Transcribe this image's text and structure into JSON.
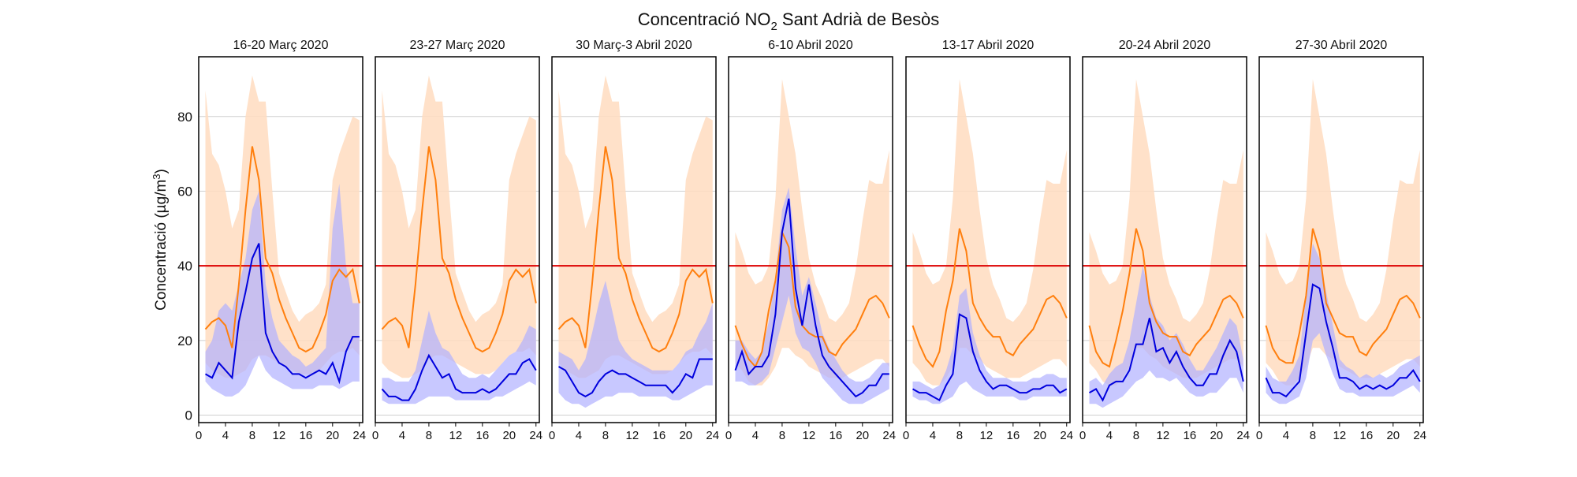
{
  "chart_data": {
    "type": "line",
    "title": "Concentració NO",
    "title_sub": "2",
    "title_rest": " Sant Adrià de Besòs",
    "ylabel_main": "Concentració (µg/m",
    "ylabel_sup": "3",
    "ylabel_end": ")",
    "ylim": [
      -2,
      96
    ],
    "xlim": [
      0,
      24.5
    ],
    "yticks": [
      0,
      20,
      40,
      60,
      80
    ],
    "xticks": [
      0,
      4,
      8,
      12,
      16,
      20,
      24
    ],
    "limit_line": 40,
    "grid": "horizontal",
    "colors": {
      "reference_line": "#ff7f0e",
      "reference_band": "#ffdcbf",
      "current_line": "#0000dd",
      "current_band": "#b0b0ff",
      "limit": "#dd0000"
    },
    "panels": [
      {
        "title": "16-20 Març 2020",
        "x": [
          1,
          2,
          3,
          4,
          5,
          6,
          7,
          8,
          9,
          10,
          11,
          12,
          13,
          14,
          15,
          16,
          17,
          18,
          19,
          20,
          21,
          22,
          23,
          24
        ],
        "reference": [
          23,
          25,
          26,
          24,
          18,
          35,
          55,
          72,
          63,
          42,
          38,
          31,
          26,
          22,
          18,
          17,
          18,
          22,
          27,
          36,
          39,
          37,
          39,
          30
        ],
        "reference_low": [
          14,
          12,
          11,
          10,
          10,
          11,
          12,
          15,
          16,
          16,
          15,
          14,
          13,
          12,
          11,
          11,
          11,
          12,
          14,
          16,
          17,
          17,
          18,
          16
        ],
        "reference_high": [
          87,
          70,
          67,
          60,
          50,
          55,
          80,
          91,
          84,
          84,
          60,
          38,
          33,
          28,
          25,
          27,
          28,
          30,
          35,
          63,
          70,
          75,
          80,
          79
        ],
        "current": [
          11,
          10,
          14,
          12,
          10,
          25,
          33,
          42,
          46,
          22,
          17,
          14,
          13,
          11,
          11,
          10,
          11,
          12,
          11,
          14,
          9,
          17,
          21,
          21
        ],
        "current_low": [
          9,
          7,
          6,
          5,
          5,
          6,
          8,
          12,
          16,
          12,
          10,
          9,
          8,
          7,
          7,
          7,
          7,
          8,
          8,
          8,
          7,
          8,
          9,
          9
        ],
        "current_high": [
          17,
          20,
          28,
          30,
          28,
          35,
          42,
          55,
          60,
          35,
          26,
          20,
          18,
          16,
          15,
          13,
          14,
          16,
          18,
          50,
          62,
          40,
          30,
          30
        ]
      },
      {
        "title": "23-27 Març 2020",
        "x": [
          1,
          2,
          3,
          4,
          5,
          6,
          7,
          8,
          9,
          10,
          11,
          12,
          13,
          14,
          15,
          16,
          17,
          18,
          19,
          20,
          21,
          22,
          23,
          24
        ],
        "reference": [
          23,
          25,
          26,
          24,
          18,
          35,
          55,
          72,
          63,
          42,
          38,
          31,
          26,
          22,
          18,
          17,
          18,
          22,
          27,
          36,
          39,
          37,
          39,
          30
        ],
        "reference_low": [
          14,
          12,
          11,
          10,
          10,
          11,
          12,
          15,
          16,
          16,
          15,
          14,
          13,
          12,
          11,
          11,
          11,
          12,
          14,
          16,
          17,
          17,
          18,
          16
        ],
        "reference_high": [
          87,
          70,
          67,
          60,
          50,
          55,
          80,
          91,
          84,
          84,
          60,
          38,
          33,
          28,
          25,
          27,
          28,
          30,
          35,
          63,
          70,
          75,
          80,
          79
        ],
        "current": [
          7,
          5,
          5,
          4,
          4,
          7,
          12,
          16,
          13,
          10,
          11,
          7,
          6,
          6,
          6,
          7,
          6,
          7,
          9,
          11,
          11,
          14,
          15,
          12
        ],
        "current_low": [
          4,
          3,
          3,
          3,
          3,
          3,
          4,
          5,
          5,
          5,
          5,
          4,
          4,
          4,
          4,
          4,
          4,
          5,
          5,
          6,
          7,
          8,
          9,
          8
        ],
        "current_high": [
          10,
          10,
          9,
          9,
          9,
          12,
          20,
          28,
          22,
          18,
          17,
          14,
          11,
          10,
          10,
          11,
          10,
          12,
          14,
          16,
          17,
          20,
          24,
          23
        ]
      },
      {
        "title": "30 Març-3 Abril 2020",
        "x": [
          1,
          2,
          3,
          4,
          5,
          6,
          7,
          8,
          9,
          10,
          11,
          12,
          13,
          14,
          15,
          16,
          17,
          18,
          19,
          20,
          21,
          22,
          23,
          24
        ],
        "reference": [
          23,
          25,
          26,
          24,
          18,
          35,
          55,
          72,
          63,
          42,
          38,
          31,
          26,
          22,
          18,
          17,
          18,
          22,
          27,
          36,
          39,
          37,
          39,
          30
        ],
        "reference_low": [
          14,
          12,
          11,
          10,
          10,
          11,
          12,
          15,
          16,
          16,
          15,
          14,
          13,
          12,
          11,
          11,
          11,
          12,
          14,
          16,
          17,
          17,
          18,
          16
        ],
        "reference_high": [
          87,
          70,
          67,
          60,
          50,
          55,
          80,
          91,
          84,
          84,
          60,
          38,
          33,
          28,
          25,
          27,
          28,
          30,
          35,
          63,
          70,
          75,
          80,
          79
        ],
        "current": [
          13,
          12,
          9,
          6,
          5,
          6,
          9,
          11,
          12,
          11,
          11,
          10,
          9,
          8,
          8,
          8,
          8,
          6,
          8,
          11,
          10,
          15,
          15,
          15
        ],
        "current_low": [
          6,
          4,
          3,
          3,
          2,
          3,
          4,
          5,
          5,
          6,
          6,
          6,
          5,
          5,
          5,
          5,
          5,
          4,
          4,
          5,
          6,
          7,
          8,
          8
        ],
        "current_high": [
          17,
          16,
          15,
          12,
          15,
          22,
          30,
          36,
          28,
          20,
          17,
          15,
          14,
          13,
          12,
          12,
          12,
          12,
          14,
          17,
          18,
          22,
          25,
          30
        ]
      },
      {
        "title": "6-10 Abril 2020",
        "x": [
          1,
          2,
          3,
          4,
          5,
          6,
          7,
          8,
          9,
          10,
          11,
          12,
          13,
          14,
          15,
          16,
          17,
          18,
          19,
          20,
          21,
          22,
          23,
          24
        ],
        "reference": [
          24,
          19,
          15,
          13,
          17,
          28,
          36,
          49,
          45,
          29,
          24,
          22,
          21,
          21,
          17,
          16,
          19,
          21,
          23,
          27,
          31,
          32,
          30,
          26
        ],
        "reference_low": [
          14,
          12,
          9,
          8,
          8,
          10,
          13,
          18,
          18,
          16,
          15,
          13,
          12,
          11,
          10,
          10,
          10,
          11,
          12,
          13,
          14,
          15,
          15,
          13
        ],
        "reference_high": [
          49,
          44,
          38,
          35,
          36,
          40,
          58,
          90,
          80,
          70,
          55,
          42,
          35,
          31,
          26,
          25,
          27,
          30,
          39,
          52,
          63,
          62,
          62,
          71
        ],
        "current": [
          12,
          17,
          11,
          13,
          13,
          16,
          27,
          49,
          58,
          34,
          24,
          35,
          24,
          16,
          13,
          11,
          9,
          7,
          5,
          6,
          8,
          8,
          11,
          11
        ],
        "current_low": [
          9,
          9,
          8,
          8,
          9,
          11,
          18,
          25,
          32,
          22,
          18,
          17,
          14,
          10,
          8,
          6,
          4,
          3,
          3,
          3,
          4,
          5,
          6,
          7
        ],
        "current_high": [
          20,
          20,
          17,
          15,
          17,
          25,
          37,
          55,
          61,
          45,
          32,
          37,
          30,
          22,
          18,
          15,
          12,
          10,
          9,
          9,
          10,
          12,
          14,
          14
        ]
      },
      {
        "title": "13-17 Abril 2020",
        "x": [
          1,
          2,
          3,
          4,
          5,
          6,
          7,
          8,
          9,
          10,
          11,
          12,
          13,
          14,
          15,
          16,
          17,
          18,
          19,
          20,
          21,
          22,
          23,
          24
        ],
        "reference": [
          24,
          19,
          15,
          13,
          17,
          28,
          36,
          50,
          44,
          30,
          26,
          23,
          21,
          21,
          17,
          16,
          19,
          21,
          23,
          27,
          31,
          32,
          30,
          26
        ],
        "reference_low": [
          14,
          12,
          9,
          8,
          8,
          10,
          13,
          18,
          18,
          16,
          15,
          13,
          12,
          11,
          10,
          10,
          10,
          11,
          12,
          13,
          14,
          15,
          15,
          13
        ],
        "reference_high": [
          49,
          44,
          38,
          35,
          36,
          40,
          58,
          90,
          80,
          70,
          55,
          42,
          35,
          31,
          26,
          25,
          27,
          30,
          39,
          52,
          63,
          62,
          62,
          71
        ],
        "current": [
          7,
          6,
          6,
          5,
          4,
          8,
          11,
          27,
          26,
          17,
          12,
          9,
          7,
          8,
          8,
          7,
          6,
          6,
          7,
          7,
          8,
          8,
          6,
          7
        ],
        "current_low": [
          5,
          4,
          4,
          3,
          3,
          4,
          5,
          8,
          9,
          7,
          6,
          5,
          5,
          5,
          5,
          5,
          4,
          4,
          5,
          5,
          5,
          5,
          5,
          5
        ],
        "current_high": [
          9,
          9,
          8,
          7,
          8,
          12,
          18,
          32,
          34,
          22,
          16,
          12,
          10,
          10,
          10,
          9,
          9,
          9,
          10,
          10,
          11,
          11,
          10,
          10
        ]
      },
      {
        "title": "20-24 Abril 2020",
        "x": [
          1,
          2,
          3,
          4,
          5,
          6,
          7,
          8,
          9,
          10,
          11,
          12,
          13,
          14,
          15,
          16,
          17,
          18,
          19,
          20,
          21,
          22,
          23,
          24
        ],
        "reference": [
          24,
          17,
          14,
          13,
          20,
          28,
          38,
          50,
          44,
          30,
          25,
          22,
          21,
          21,
          17,
          16,
          19,
          21,
          23,
          27,
          31,
          32,
          30,
          26
        ],
        "reference_low": [
          14,
          12,
          9,
          8,
          8,
          10,
          13,
          18,
          18,
          16,
          15,
          13,
          12,
          11,
          10,
          10,
          10,
          11,
          12,
          13,
          14,
          15,
          15,
          13
        ],
        "reference_high": [
          49,
          44,
          38,
          35,
          36,
          40,
          58,
          90,
          80,
          70,
          55,
          42,
          35,
          31,
          26,
          25,
          27,
          30,
          39,
          52,
          63,
          62,
          62,
          71
        ],
        "current": [
          6,
          7,
          4,
          8,
          9,
          9,
          12,
          19,
          19,
          26,
          17,
          18,
          14,
          17,
          13,
          10,
          8,
          8,
          11,
          11,
          16,
          20,
          17,
          9
        ],
        "current_low": [
          3,
          3,
          2,
          3,
          4,
          5,
          7,
          9,
          10,
          12,
          10,
          10,
          9,
          10,
          8,
          6,
          5,
          5,
          6,
          6,
          8,
          10,
          10,
          6
        ],
        "current_high": [
          9,
          10,
          8,
          11,
          13,
          14,
          20,
          30,
          40,
          32,
          26,
          24,
          20,
          22,
          19,
          15,
          12,
          12,
          15,
          18,
          22,
          26,
          24,
          15
        ]
      },
      {
        "title": "27-30 Abril 2020",
        "x": [
          1,
          2,
          3,
          4,
          5,
          6,
          7,
          8,
          9,
          10,
          11,
          12,
          13,
          14,
          15,
          16,
          17,
          18,
          19,
          20,
          21,
          22,
          23,
          24
        ],
        "reference": [
          24,
          18,
          15,
          14,
          14,
          22,
          32,
          50,
          44,
          30,
          26,
          22,
          21,
          21,
          17,
          16,
          19,
          21,
          23,
          27,
          31,
          32,
          30,
          26
        ],
        "reference_low": [
          14,
          12,
          9,
          8,
          8,
          10,
          13,
          18,
          18,
          16,
          15,
          13,
          12,
          11,
          10,
          10,
          10,
          11,
          12,
          13,
          14,
          15,
          15,
          13
        ],
        "reference_high": [
          49,
          44,
          38,
          35,
          36,
          40,
          58,
          90,
          80,
          70,
          55,
          42,
          35,
          31,
          26,
          25,
          27,
          30,
          39,
          52,
          63,
          62,
          62,
          71
        ],
        "current": [
          10,
          6,
          6,
          5,
          7,
          9,
          22,
          35,
          34,
          25,
          18,
          10,
          10,
          9,
          7,
          8,
          7,
          8,
          7,
          8,
          10,
          10,
          12,
          9
        ],
        "current_low": [
          6,
          4,
          3,
          3,
          4,
          5,
          10,
          20,
          22,
          16,
          11,
          7,
          6,
          6,
          5,
          5,
          5,
          5,
          5,
          5,
          6,
          7,
          8,
          6
        ],
        "current_high": [
          13,
          10,
          9,
          9,
          12,
          16,
          32,
          46,
          42,
          33,
          24,
          15,
          13,
          12,
          10,
          11,
          10,
          11,
          10,
          11,
          13,
          14,
          15,
          16
        ]
      }
    ]
  }
}
